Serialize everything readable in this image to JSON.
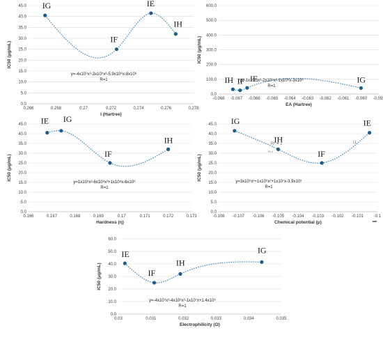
{
  "figure": {
    "colors": {
      "point": "#1f5c8a",
      "trend": "#2f7fbf",
      "grid": "#d9d9d9"
    }
  },
  "chart_data": [
    {
      "type": "scatter",
      "xlabel": "I (Hartree)",
      "ylabel": "IC50 (μg/mL)",
      "xlim": [
        0.266,
        0.278
      ],
      "ylim": [
        0,
        45
      ],
      "xticks": [
        "0.266",
        "0.268",
        "0.27",
        "0.272",
        "0.274",
        "0.276",
        "0.278"
      ],
      "yticks": [
        "0.0",
        "5.0",
        "10.0",
        "15.0",
        "20.0",
        "25.0",
        "30.0",
        "35.0",
        "40.0",
        "45.0"
      ],
      "points": [
        {
          "label": "IG",
          "x": 0.2672,
          "y": 40.5
        },
        {
          "label": "IF",
          "x": 0.2724,
          "y": 25.0
        },
        {
          "label": "IE",
          "x": 0.2749,
          "y": 41.5
        },
        {
          "label": "IH",
          "x": 0.2767,
          "y": 32.0
        }
      ],
      "trendline": {
        "type": "poly3",
        "x_from": 0.2672,
        "x_to": 0.2767
      },
      "equation": "y=-4x10⁹x³-3x10⁹x²-5.9x10⁶x-8x10⁶",
      "r": "R=1",
      "grid": true
    },
    {
      "type": "scatter",
      "xlabel": "EA (Hartree)",
      "ylabel": "IC50 (μg/mL)",
      "xlim": [
        -0.068,
        -0.059
      ],
      "ylim": [
        0,
        600
      ],
      "xticks": [
        "-0.068",
        "-0.067",
        "-0.066",
        "-0.065",
        "-0.064",
        "-0.063",
        "-0.062",
        "-0.061",
        "-0.060",
        "-0.059"
      ],
      "yticks": [
        "0.0",
        "100.0",
        "200.0",
        "300.0",
        "400.0",
        "500.0",
        "600.0"
      ],
      "points": [
        {
          "label": "IH",
          "x": -0.0672,
          "y": 32.0
        },
        {
          "label": "IF",
          "x": -0.0668,
          "y": 25.0
        },
        {
          "label": "IE",
          "x": -0.0664,
          "y": 41.5
        },
        {
          "label": "IG",
          "x": -0.06,
          "y": 40.5
        }
      ],
      "trendline": {
        "type": "poly3",
        "x_from": -0.0672,
        "x_to": -0.06
      },
      "equation": "y=-1x10¹⁰x³-2x10⁹x²-1x10⁸x-3x10⁶",
      "r": "R=1",
      "grid": true
    },
    {
      "type": "scatter",
      "xlabel": "Hardness (η)",
      "ylabel": "IC50 (μg/mL)",
      "xlim": [
        0.166,
        0.173
      ],
      "ylim": [
        0,
        45
      ],
      "xticks": [
        "0.166",
        "0.167",
        "0.168",
        "0.169",
        "0.17",
        "0.171",
        "0.172",
        "0.173"
      ],
      "yticks": [
        "0.0",
        "5.0",
        "10.0",
        "15.0",
        "20.0",
        "25.0",
        "30.0",
        "35.0",
        "40.0",
        "45.0"
      ],
      "points": [
        {
          "label": "IE",
          "x": 0.1668,
          "y": 40.5
        },
        {
          "label": "IG",
          "x": 0.1674,
          "y": 41.5
        },
        {
          "label": "IF",
          "x": 0.1695,
          "y": 25.0
        },
        {
          "label": "IH",
          "x": 0.172,
          "y": 32.0
        }
      ],
      "trendline": {
        "type": "poly3",
        "x_from": 0.1668,
        "x_to": 0.172
      },
      "equation": "y=1x10⁹x³-6x10⁸x²+1x10⁸x-6x10⁶",
      "r": "R=1",
      "grid": true
    },
    {
      "type": "scatter",
      "xlabel": "Chemical potential (μ)",
      "ylabel": "IC50 (μg/mL)",
      "xlim": [
        -0.108,
        -0.1
      ],
      "ylim": [
        0,
        45
      ],
      "xticks": [
        "-0.108",
        "-0.107",
        "-0.106",
        "-0.105",
        "-0.104",
        "-0.103",
        "-0.102",
        "-0.101",
        "-0.1"
      ],
      "yticks": [
        "0.0",
        "5.0",
        "10.0",
        "15.0",
        "20.0",
        "25.0",
        "30.0",
        "35.0",
        "40.0",
        "45.0"
      ],
      "points": [
        {
          "label": "IG",
          "x": -0.1072,
          "y": 41.5
        },
        {
          "label": "IH",
          "x": -0.105,
          "y": 32.0
        },
        {
          "label": "IF",
          "x": -0.1028,
          "y": 25.0
        },
        {
          "label": "IE",
          "x": -0.1004,
          "y": 40.5
        }
      ],
      "trendline": {
        "type": "poly3",
        "x_from": -0.1072,
        "x_to": -0.1004
      },
      "equation": "y=3x10⁹x³+1x10⁹x²+1x10⁷x-3.9x10⁵",
      "r": "R=1",
      "notes": [
        "R² = 1",
        "R=1",
        "I1"
      ],
      "grid": true
    },
    {
      "type": "scatter",
      "xlabel": "Electrophilicity (Ω)",
      "ylabel": "IC50 (μg/mL)",
      "xlim": [
        0.03,
        0.035
      ],
      "ylim": [
        0,
        60
      ],
      "xticks": [
        "0.03",
        "0.031",
        "0.032",
        "0.033",
        "0.034",
        "0.035"
      ],
      "yticks": [
        "0.0",
        "10.0",
        "20.0",
        "30.0",
        "40.0",
        "50.0",
        "60.0"
      ],
      "points": [
        {
          "label": "IE",
          "x": 0.0302,
          "y": 40.5
        },
        {
          "label": "IF",
          "x": 0.0311,
          "y": 25.0
        },
        {
          "label": "IH",
          "x": 0.0319,
          "y": 32.0
        },
        {
          "label": "IG",
          "x": 0.0344,
          "y": 41.5
        }
      ],
      "trendline": {
        "type": "poly3",
        "x_from": 0.0302,
        "x_to": 0.0344
      },
      "equation": "y=-4x10⁹x³-4x10⁸x²-1x10⁷x+1.4x10⁵",
      "r": "R=1",
      "grid": true
    }
  ]
}
